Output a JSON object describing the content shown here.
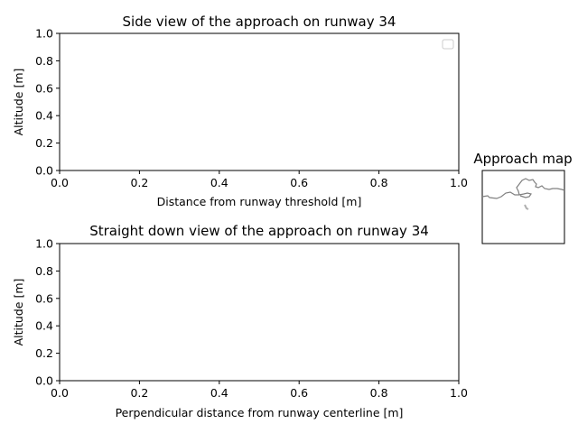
{
  "figure": {
    "side": {
      "title": "Side view of the approach on runway 34",
      "xlabel": "Distance from runway threshold [m]",
      "ylabel": "Altitude [m]"
    },
    "down": {
      "title": "Straight down view of the approach on runway 34",
      "xlabel": "Perpendicular distance from runway centerline [m]",
      "ylabel": "Altitude [m]"
    },
    "map": {
      "title": "Approach map"
    }
  },
  "chart_data": [
    {
      "type": "line",
      "title": "Side view of the approach on runway 34",
      "xlabel": "Distance from runway threshold [m]",
      "ylabel": "Altitude [m]",
      "xlim": [
        0,
        1
      ],
      "ylim": [
        0,
        1
      ],
      "xticks": [
        "0.0",
        "0.2",
        "0.4",
        "0.6",
        "0.8",
        "1.0"
      ],
      "yticks": [
        "0.0",
        "0.2",
        "0.4",
        "0.6",
        "0.8",
        "1.0"
      ],
      "series": [],
      "legend": "top-right",
      "grid": false
    },
    {
      "type": "line",
      "title": "Straight down view of the approach on runway 34",
      "xlabel": "Perpendicular distance from runway centerline [m]",
      "ylabel": "Altitude [m]",
      "xlim": [
        0,
        1
      ],
      "ylim": [
        0,
        1
      ],
      "xticks": [
        "0.0",
        "0.2",
        "0.4",
        "0.6",
        "0.8",
        "1.0"
      ],
      "yticks": [
        "0.0",
        "0.2",
        "0.4",
        "0.6",
        "0.8",
        "1.0"
      ],
      "series": [],
      "grid": false
    }
  ],
  "colors": {
    "axis": "#000000",
    "coastline": "#808080",
    "legend_border": "#cccccc"
  }
}
